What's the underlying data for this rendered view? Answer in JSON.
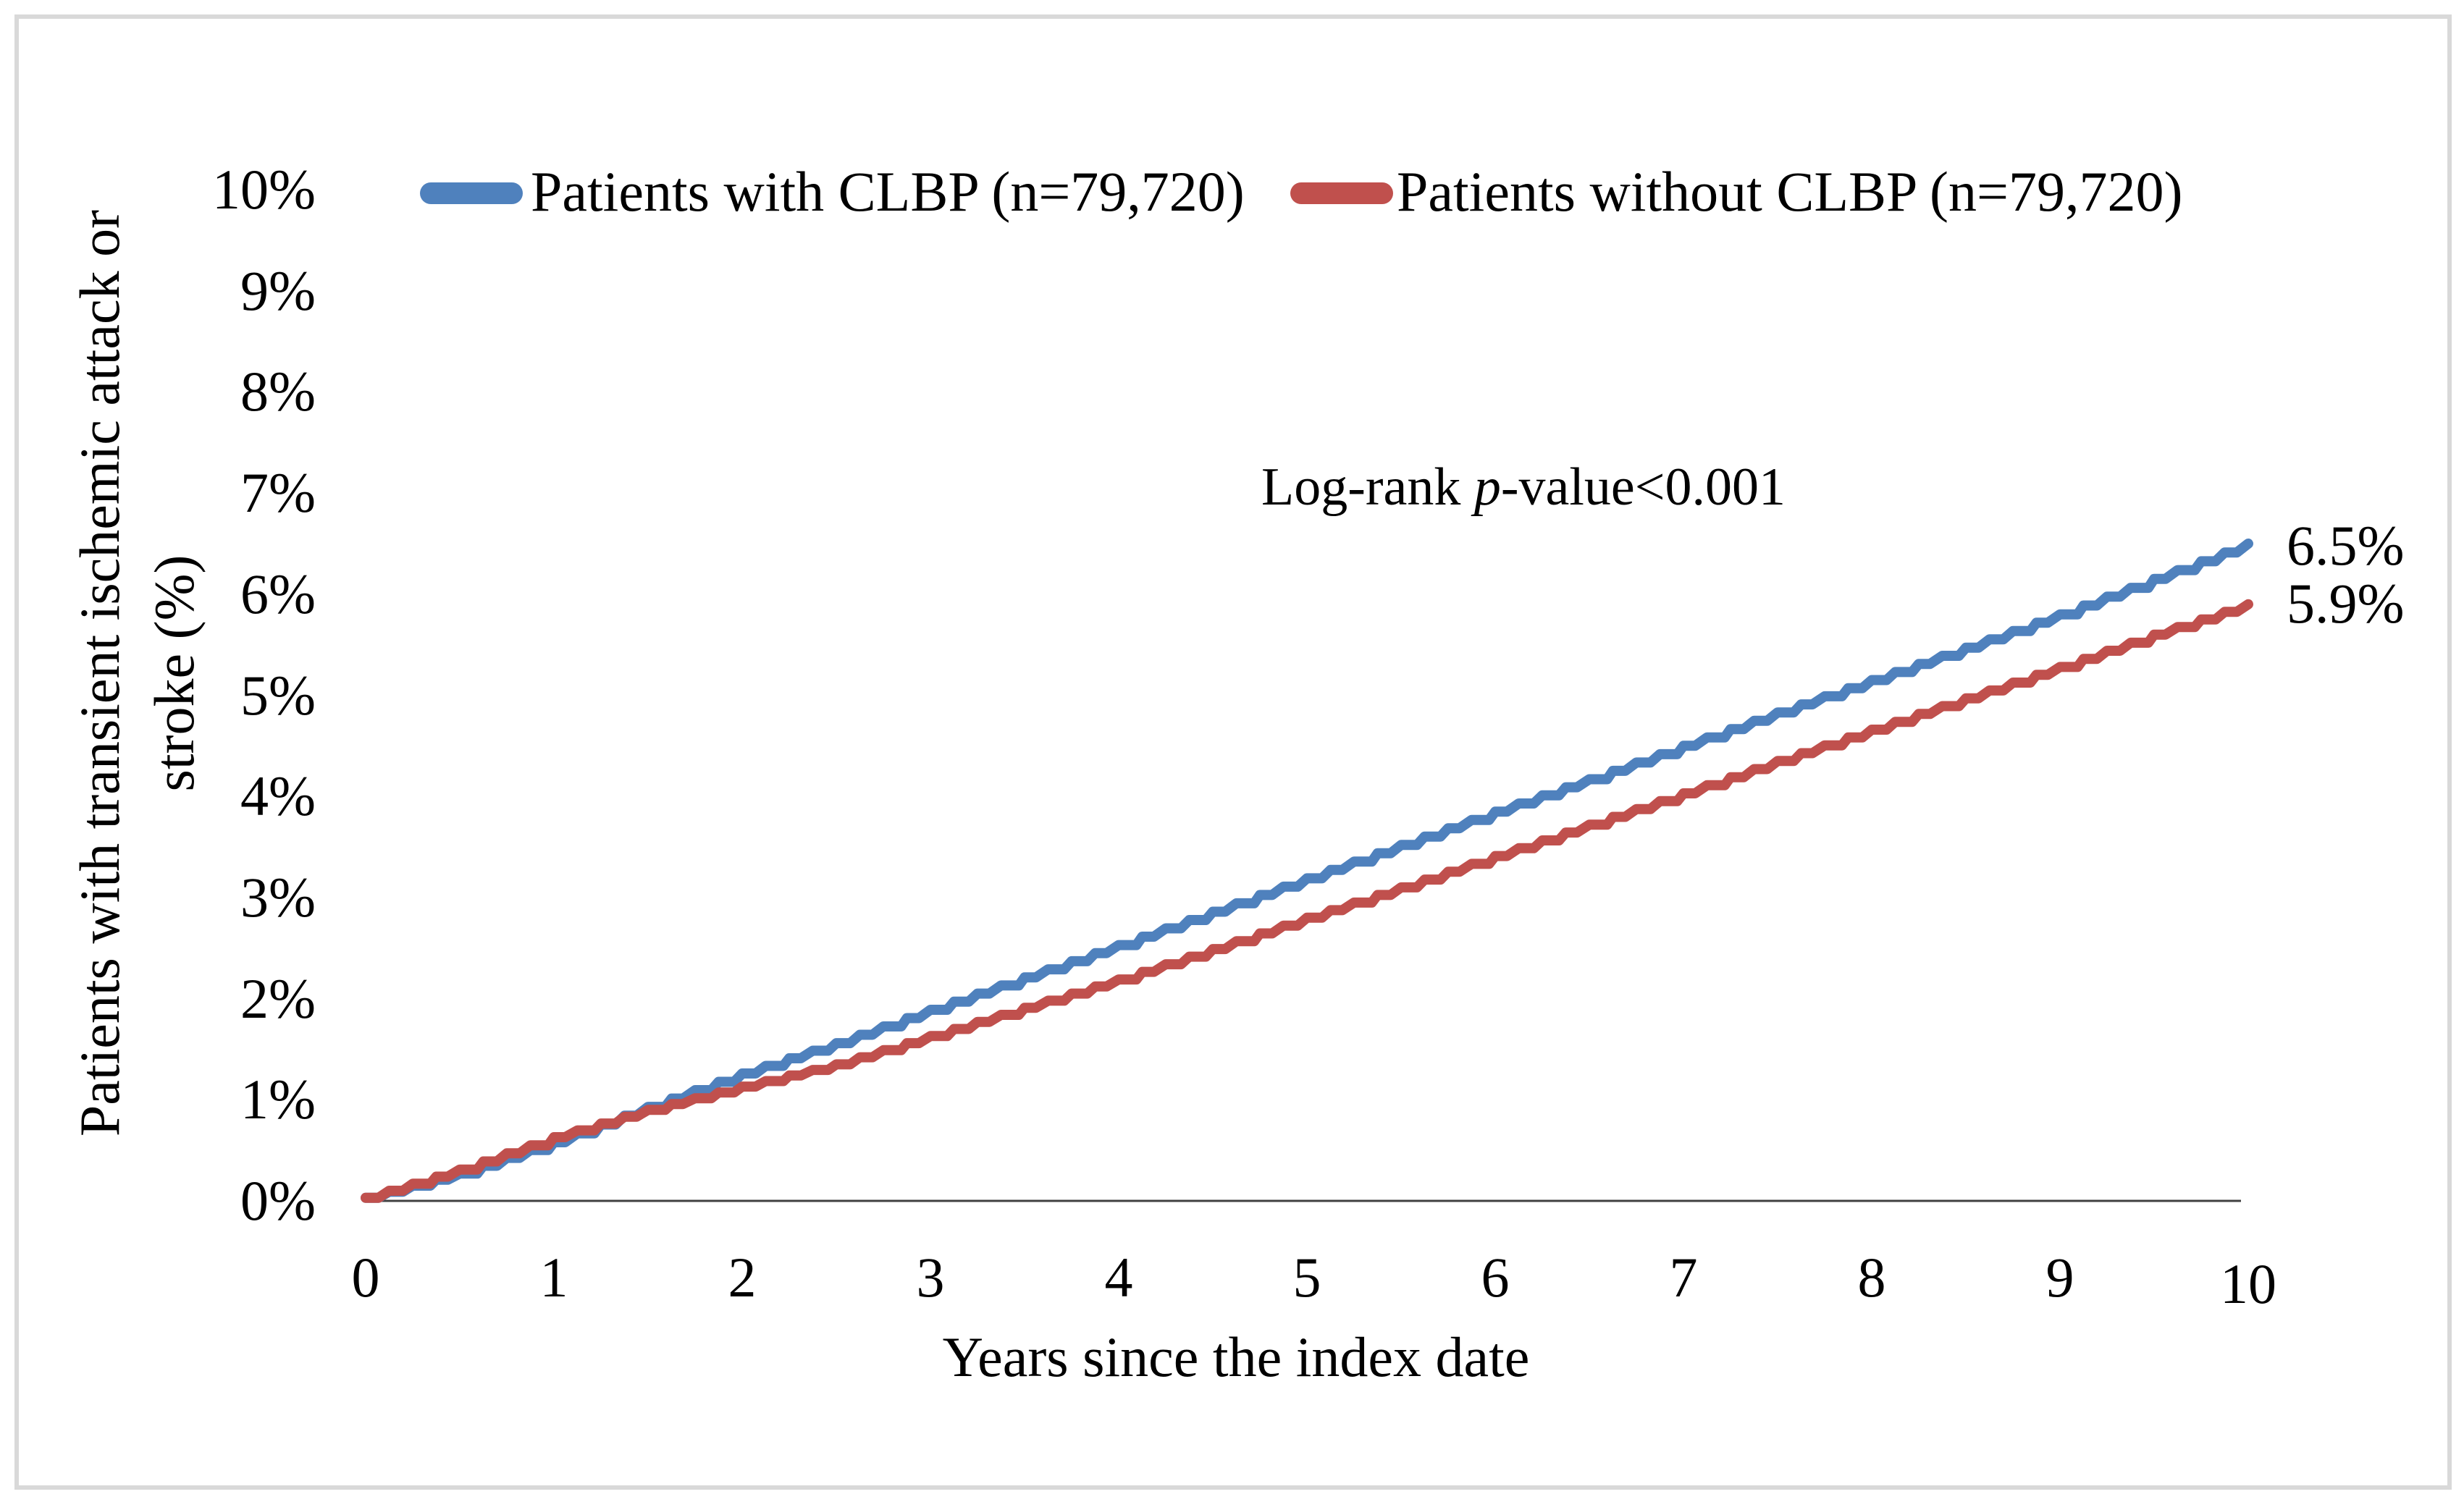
{
  "figure": {
    "background": "#ffffff",
    "border_color": "#d9d9d9",
    "axis_line_color": "#404040"
  },
  "legend": {
    "items": [
      {
        "label": "Patients with CLBP (n=79,720)",
        "color": "#4f81bd"
      },
      {
        "label": "Patients without CLBP (n=79,720)",
        "color": "#c0504d"
      }
    ]
  },
  "annotation": {
    "pre": "Log-rank ",
    "italic": "p",
    "post": "-value<0.001"
  },
  "chart_data": {
    "type": "line",
    "title": "",
    "xlabel": "Years since the index date",
    "ylabel_lines": [
      "Patients with transient ischemic attack or",
      "stroke (%)"
    ],
    "xlim": [
      0,
      10
    ],
    "ylim": [
      0,
      10
    ],
    "grid": false,
    "legend_position": "top",
    "annotation_text": "Log-rank p-value<0.001",
    "xticks": [
      "0",
      "1",
      "2",
      "3",
      "4",
      "5",
      "6",
      "7",
      "8",
      "9",
      "10"
    ],
    "yticks": [
      "0%",
      "1%",
      "2%",
      "3%",
      "4%",
      "5%",
      "6%",
      "7%",
      "8%",
      "9%",
      "10%"
    ],
    "x": [
      0,
      0.5,
      1,
      1.5,
      2,
      2.5,
      3,
      3.5,
      4,
      4.5,
      5,
      5.5,
      6,
      6.5,
      7,
      7.5,
      8,
      8.5,
      9,
      9.5,
      10
    ],
    "series": [
      {
        "name": "Patients with CLBP (n=79,720)",
        "color": "#4f81bd",
        "end_label": "6.5%",
        "y_pct": [
          0.03,
          0.27,
          0.58,
          0.93,
          1.26,
          1.56,
          1.89,
          2.21,
          2.53,
          2.86,
          3.19,
          3.52,
          3.85,
          4.17,
          4.5,
          4.83,
          5.15,
          5.47,
          5.8,
          6.15,
          6.5
        ]
      },
      {
        "name": "Patients without CLBP (n=79,720)",
        "color": "#c0504d",
        "end_label": "5.9%",
        "y_pct": [
          0.03,
          0.31,
          0.63,
          0.9,
          1.13,
          1.35,
          1.63,
          1.91,
          2.19,
          2.49,
          2.8,
          3.1,
          3.41,
          3.72,
          4.03,
          4.35,
          4.66,
          4.97,
          5.28,
          5.6,
          5.9
        ]
      }
    ]
  }
}
